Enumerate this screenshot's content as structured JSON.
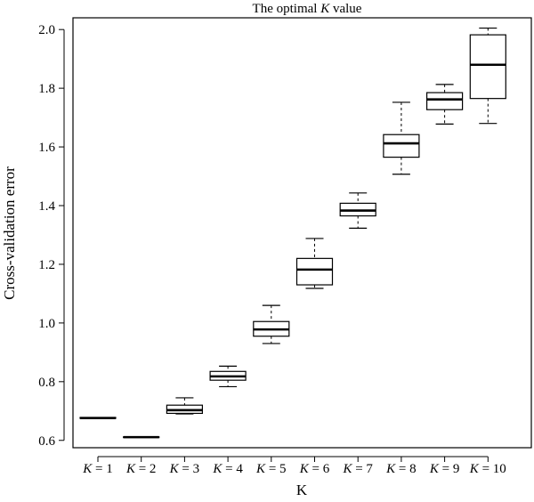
{
  "chart_data": {
    "type": "boxplot",
    "title_prefix": "The optimal ",
    "title_var": "K",
    "title_suffix": " value",
    "xlabel": "K",
    "ylabel": "Cross-validation error",
    "ylim": [
      0.575,
      2.04
    ],
    "yticks": [
      "0.6",
      "0.8",
      "1.0",
      "1.2",
      "1.4",
      "1.6",
      "1.8",
      "2.0"
    ],
    "ytick_values": [
      0.6,
      0.8,
      1.0,
      1.2,
      1.4,
      1.6,
      1.8,
      2.0
    ],
    "grid": false,
    "categories": [
      {
        "var": "K",
        "rest": " = 1"
      },
      {
        "var": "K",
        "rest": " = 2"
      },
      {
        "var": "K",
        "rest": " = 3"
      },
      {
        "var": "K",
        "rest": " = 4"
      },
      {
        "var": "K",
        "rest": " = 5"
      },
      {
        "var": "K",
        "rest": " = 6"
      },
      {
        "var": "K",
        "rest": " = 7"
      },
      {
        "var": "K",
        "rest": " = 8"
      },
      {
        "var": "K",
        "rest": " = 9"
      },
      {
        "var": "K",
        "rest": " = 10"
      }
    ],
    "boxes": [
      {
        "min": 0.675,
        "q1": 0.675,
        "median": 0.676,
        "q3": 0.678,
        "max": 0.678
      },
      {
        "min": 0.61,
        "q1": 0.61,
        "median": 0.611,
        "q3": 0.612,
        "max": 0.612
      },
      {
        "min": 0.69,
        "q1": 0.692,
        "median": 0.703,
        "q3": 0.72,
        "max": 0.745
      },
      {
        "min": 0.783,
        "q1": 0.805,
        "median": 0.818,
        "q3": 0.835,
        "max": 0.853
      },
      {
        "min": 0.93,
        "q1": 0.955,
        "median": 0.978,
        "q3": 1.005,
        "max": 1.06
      },
      {
        "min": 1.118,
        "q1": 1.13,
        "median": 1.182,
        "q3": 1.22,
        "max": 1.288
      },
      {
        "min": 1.323,
        "q1": 1.365,
        "median": 1.383,
        "q3": 1.408,
        "max": 1.443
      },
      {
        "min": 1.507,
        "q1": 1.565,
        "median": 1.612,
        "q3": 1.642,
        "max": 1.752
      },
      {
        "min": 1.678,
        "q1": 1.727,
        "median": 1.762,
        "q3": 1.785,
        "max": 1.813
      },
      {
        "min": 1.68,
        "q1": 1.765,
        "median": 1.88,
        "q3": 1.982,
        "max": 2.005
      }
    ]
  }
}
